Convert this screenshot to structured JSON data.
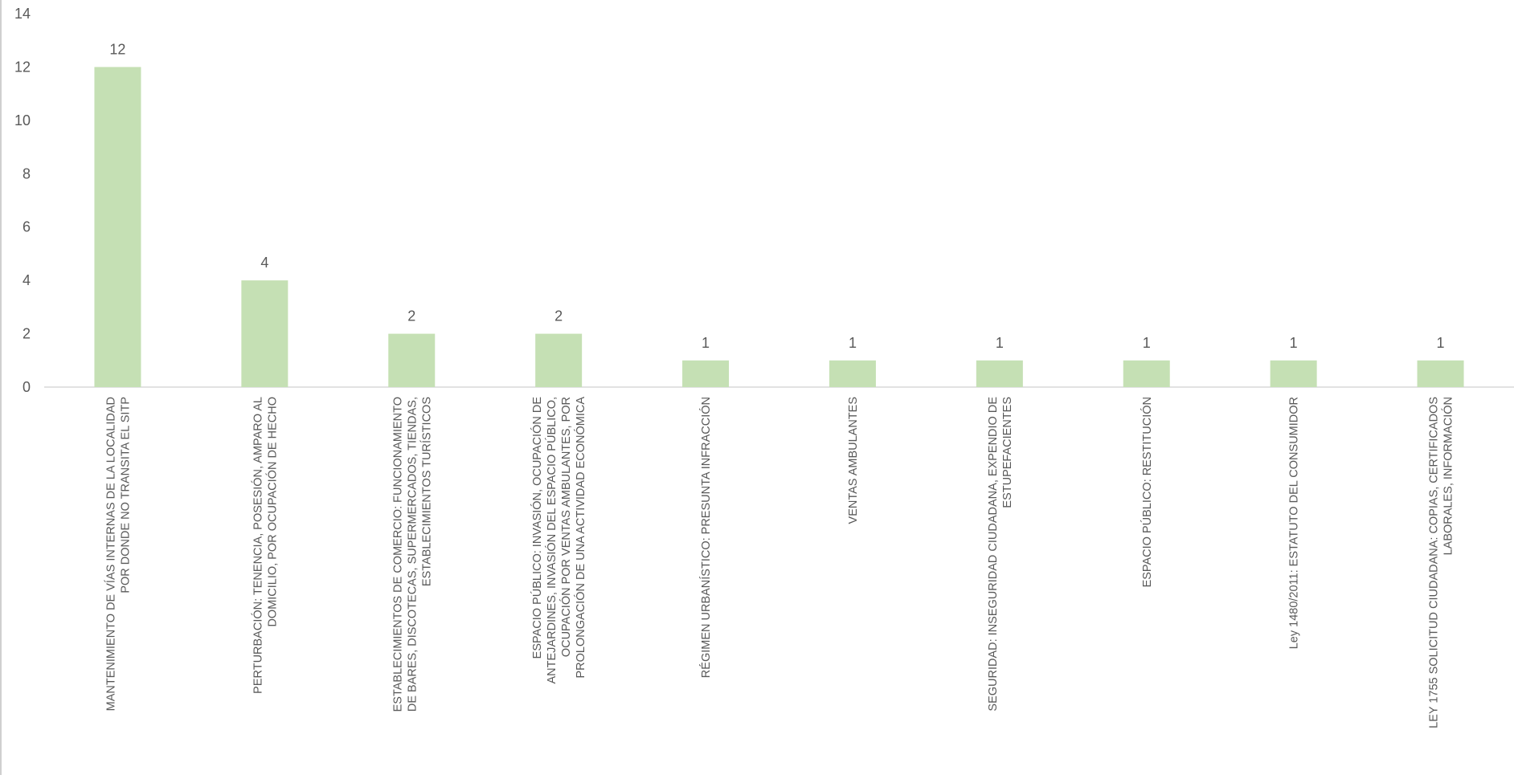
{
  "chart_data": {
    "type": "bar",
    "title": "",
    "xlabel": "",
    "ylabel": "",
    "ylim": [
      0,
      14
    ],
    "yticks": [
      0,
      2,
      4,
      6,
      8,
      10,
      12,
      14
    ],
    "grid": false,
    "legend": "none",
    "bar_color": "#c5e0b4",
    "categories": [
      [
        "MANTENIMIENTO DE VÍAS INTERNAS DE LA LOCALIDAD",
        "POR DONDE NO TRANSITA EL SITP"
      ],
      [
        "PERTURBACIÓN: TENENCIA, POSESIÓN, AMPARO AL",
        "DOMICILIO, POR OCUPACIÓN DE HECHO"
      ],
      [
        "ESTABLECIMIENTOS DE COMERCIO: FUNCIONAMIENTO",
        "DE BARES, DISCOTECAS, SUPERMERCADOS, TIENDAS,",
        "ESTABLECIMIENTOS TURÍSTICOS"
      ],
      [
        "ESPACIO PÚBLICO: INVASIÓN, OCUPACIÓN DE",
        "ANTEJARDINES, INVASIÓN DEL ESPACIO PÚBLICO,",
        "OCUPACIÓN POR VENTAS AMBULANTES, POR",
        "PROLONGACIÓN DE UNA ACTIVIDAD ECONÓMICA"
      ],
      [
        "RÉGIMEN URBANÍSTICO: PRESUNTA INFRACCIÓN"
      ],
      [
        "VENTAS AMBULANTES"
      ],
      [
        "SEGURIDAD: INSEGURIDAD CIUDADANA, EXPENDIO DE",
        "ESTUPEFACIENTES"
      ],
      [
        "ESPACIO PÚBLICO: RESTITUCIÓN"
      ],
      [
        "Ley 1480/2011: ESTATUTO DEL CONSUMIDOR"
      ],
      [
        "LEY 1755 SOLICITUD CIUDADANA: COPIAS, CERTIFICADOS",
        "LABORALES, INFORMACIÓN"
      ]
    ],
    "values": [
      12,
      4,
      2,
      2,
      1,
      1,
      1,
      1,
      1,
      1
    ],
    "data_labels": [
      "12",
      "4",
      "2",
      "2",
      "1",
      "1",
      "1",
      "1",
      "1",
      "1"
    ]
  }
}
